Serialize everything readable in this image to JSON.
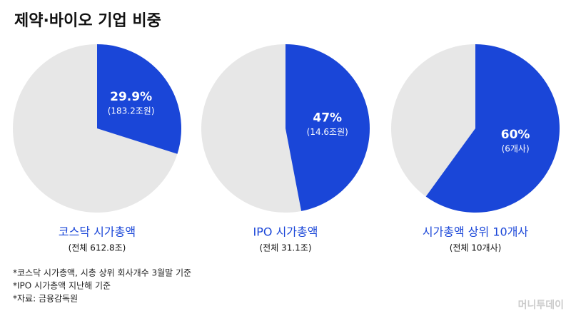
{
  "title": "제약·바이오 기업 비중",
  "chart_data": [
    {
      "type": "pie",
      "title": "코스닥 시가총액",
      "subtitle": "(전체 612.8조)",
      "values": [
        29.9
      ],
      "value_labels": [
        "29.9%"
      ],
      "detail_labels": [
        "(183.2조원)"
      ],
      "color": "#1a46d8",
      "rest_color": "#e7e7e7"
    },
    {
      "type": "pie",
      "title": "IPO 시가총액",
      "subtitle": "(전체 31.1조)",
      "values": [
        47
      ],
      "value_labels": [
        "47%"
      ],
      "detail_labels": [
        "(14.6조원)"
      ],
      "color": "#1a46d8",
      "rest_color": "#e7e7e7"
    },
    {
      "type": "pie",
      "title": "시가총액 상위 10개사",
      "subtitle": "(전체 10개사)",
      "values": [
        60
      ],
      "value_labels": [
        "60%"
      ],
      "detail_labels": [
        "(6개사)"
      ],
      "color": "#1a46d8",
      "rest_color": "#e7e7e7"
    }
  ],
  "notes": [
    "*코스닥 시가총액, 시총 상위 회사개수 3월말 기준",
    "*IPO 시가총액 지난해 기준",
    "*자료: 금융감독원"
  ],
  "brand": "머니투데이"
}
